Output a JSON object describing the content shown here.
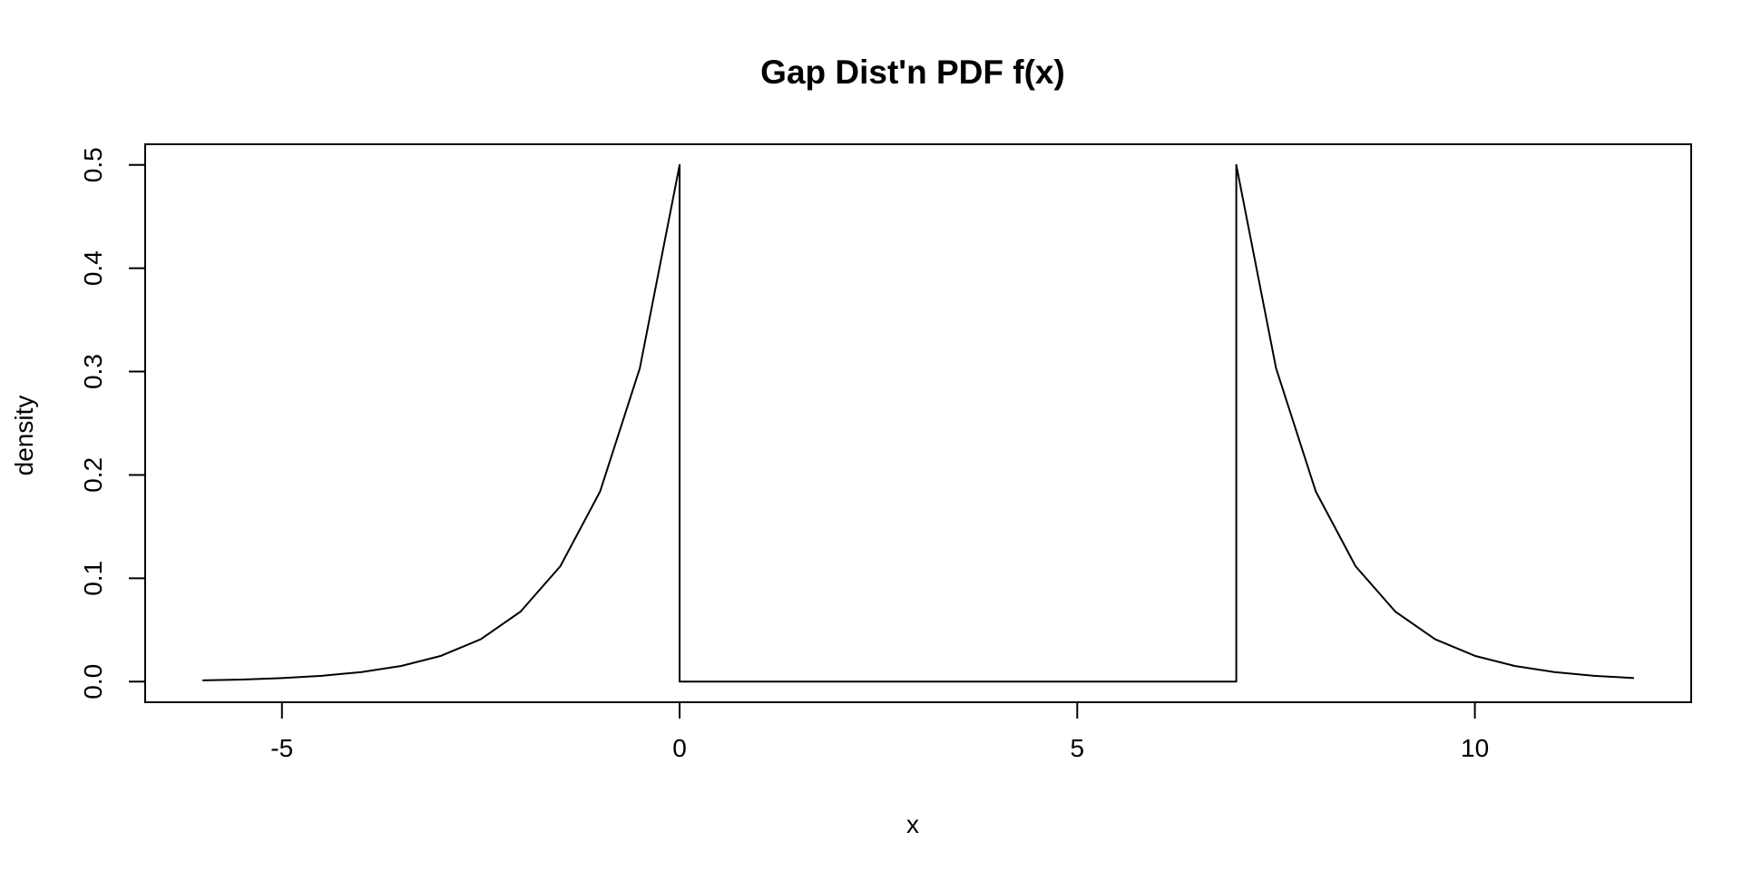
{
  "chart_data": {
    "type": "line",
    "title": "Gap Dist'n PDF f(x)",
    "xlabel": "x",
    "ylabel": "density",
    "xlim": [
      -6.72,
      12.72
    ],
    "ylim": [
      -0.02,
      0.52
    ],
    "x_ticks": [
      -5,
      0,
      5,
      10
    ],
    "x_tick_labels": [
      "-5",
      "0",
      "5",
      "10"
    ],
    "y_ticks": [
      0.0,
      0.1,
      0.2,
      0.3,
      0.4,
      0.5
    ],
    "y_tick_labels": [
      "0.0",
      "0.1",
      "0.2",
      "0.3",
      "0.4",
      "0.5"
    ],
    "grid": false,
    "legend": "none",
    "line_color": "#000000",
    "series": [
      {
        "x": [
          -6,
          -5.5,
          -5,
          -4.5,
          -4,
          -3.5,
          -3,
          -2.5,
          -2,
          -1.5,
          -1,
          -0.5,
          0,
          0,
          7,
          7,
          7.5,
          8,
          8.5,
          9,
          9.5,
          10,
          10.5,
          11,
          11.5,
          12
        ],
        "values": [
          0.0012,
          0.002,
          0.0034,
          0.0056,
          0.0092,
          0.0151,
          0.0249,
          0.041,
          0.0677,
          0.1116,
          0.1839,
          0.3033,
          0.5,
          0,
          0,
          0.5,
          0.3033,
          0.1839,
          0.1116,
          0.0677,
          0.041,
          0.0249,
          0.0151,
          0.0092,
          0.0056,
          0.0034
        ]
      }
    ]
  }
}
